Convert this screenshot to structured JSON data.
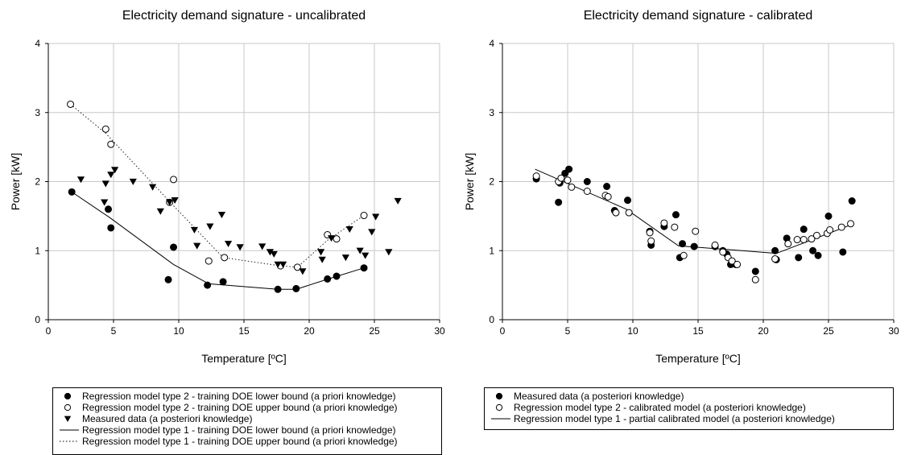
{
  "chart_data": [
    {
      "type": "scatter",
      "title": "Electricity demand signature - uncalibrated",
      "xlabel": "Temperature [ºC]",
      "ylabel": "Power [kW]",
      "xlim": [
        0,
        30
      ],
      "ylim": [
        0,
        4
      ],
      "xticks": [
        "0",
        "5",
        "10",
        "15",
        "20",
        "25",
        "30"
      ],
      "yticks": [
        "0",
        "1",
        "2",
        "3",
        "4"
      ],
      "grid": true,
      "legend_position": "bottom",
      "series": [
        {
          "name": "Regression model type 2 - training DOE lower bound (a priori knowledge)",
          "marker": "filled-circle",
          "points": [
            [
              1.8,
              1.85
            ],
            [
              4.6,
              1.6
            ],
            [
              4.8,
              1.33
            ],
            [
              9.2,
              0.58
            ],
            [
              9.6,
              1.05
            ],
            [
              12.2,
              0.5
            ],
            [
              13.4,
              0.55
            ],
            [
              17.6,
              0.44
            ],
            [
              19.0,
              0.45
            ],
            [
              21.4,
              0.59
            ],
            [
              22.1,
              0.63
            ],
            [
              24.2,
              0.75
            ]
          ]
        },
        {
          "name": "Regression model type 2 - training DOE upper bound (a priori knowledge)",
          "marker": "open-circle",
          "points": [
            [
              1.7,
              3.12
            ],
            [
              4.4,
              2.76
            ],
            [
              4.8,
              2.54
            ],
            [
              9.3,
              1.7
            ],
            [
              9.6,
              2.03
            ],
            [
              12.3,
              0.85
            ],
            [
              13.5,
              0.9
            ],
            [
              17.8,
              0.78
            ],
            [
              19.1,
              0.76
            ],
            [
              21.4,
              1.23
            ],
            [
              22.1,
              1.17
            ],
            [
              24.2,
              1.51
            ]
          ]
        },
        {
          "name": "Measured data (a posteriori knowledge)",
          "marker": "triangle-down",
          "points": [
            [
              2.5,
              2.03
            ],
            [
              4.3,
              1.7
            ],
            [
              4.4,
              1.97
            ],
            [
              4.8,
              2.1
            ],
            [
              5.1,
              2.17
            ],
            [
              6.5,
              2.0
            ],
            [
              8.0,
              1.92
            ],
            [
              8.6,
              1.57
            ],
            [
              9.3,
              1.7
            ],
            [
              9.7,
              1.73
            ],
            [
              11.2,
              1.3
            ],
            [
              11.4,
              1.07
            ],
            [
              12.4,
              1.35
            ],
            [
              13.3,
              1.52
            ],
            [
              13.8,
              1.1
            ],
            [
              14.7,
              1.05
            ],
            [
              16.4,
              1.06
            ],
            [
              17.0,
              0.98
            ],
            [
              17.3,
              0.95
            ],
            [
              17.6,
              0.8
            ],
            [
              18.0,
              0.8
            ],
            [
              19.5,
              0.7
            ],
            [
              20.9,
              0.98
            ],
            [
              21.0,
              0.87
            ],
            [
              21.7,
              1.18
            ],
            [
              22.8,
              0.9
            ],
            [
              23.1,
              1.31
            ],
            [
              23.9,
              1.0
            ],
            [
              24.3,
              0.93
            ],
            [
              24.8,
              1.27
            ],
            [
              25.1,
              1.49
            ],
            [
              26.1,
              0.98
            ],
            [
              26.8,
              1.72
            ]
          ]
        },
        {
          "name": "Regression model type 1 - training DOE lower bound (a priori knowledge)",
          "line_style": "solid",
          "points": [
            [
              1.8,
              1.85
            ],
            [
              4.7,
              1.48
            ],
            [
              9.6,
              0.8
            ],
            [
              12.3,
              0.52
            ],
            [
              17.6,
              0.44
            ],
            [
              19.0,
              0.44
            ],
            [
              21.3,
              0.58
            ],
            [
              24.2,
              0.75
            ]
          ]
        },
        {
          "name": "Regression model type 1 - training DOE upper bound (a priori knowledge)",
          "line_style": "dotted",
          "points": [
            [
              1.7,
              3.12
            ],
            [
              4.4,
              2.7
            ],
            [
              9.5,
              1.67
            ],
            [
              13.4,
              0.9
            ],
            [
              17.8,
              0.78
            ],
            [
              19.1,
              0.76
            ],
            [
              21.4,
              1.15
            ],
            [
              24.2,
              1.51
            ]
          ]
        }
      ]
    },
    {
      "type": "scatter",
      "title": "Electricity demand signature - calibrated",
      "xlabel": "Temperature [ºC]",
      "ylabel": "Power [kW]",
      "xlim": [
        0,
        30
      ],
      "ylim": [
        0,
        4
      ],
      "xticks": [
        "0",
        "5",
        "10",
        "15",
        "20",
        "25",
        "30"
      ],
      "yticks": [
        "0",
        "1",
        "2",
        "3",
        "4"
      ],
      "grid": true,
      "legend_position": "bottom",
      "series": [
        {
          "name": "Measured data (a posteriori knowledge)",
          "marker": "filled-circle",
          "points": [
            [
              2.6,
              2.04
            ],
            [
              4.3,
              1.7
            ],
            [
              4.4,
              1.98
            ],
            [
              4.8,
              2.12
            ],
            [
              5.1,
              2.18
            ],
            [
              6.5,
              2.0
            ],
            [
              8.0,
              1.93
            ],
            [
              8.6,
              1.58
            ],
            [
              9.6,
              1.73
            ],
            [
              11.3,
              1.28
            ],
            [
              11.4,
              1.08
            ],
            [
              12.4,
              1.35
            ],
            [
              13.3,
              1.52
            ],
            [
              13.6,
              0.9
            ],
            [
              13.8,
              1.1
            ],
            [
              14.7,
              1.06
            ],
            [
              16.3,
              1.06
            ],
            [
              16.9,
              1.0
            ],
            [
              17.2,
              0.95
            ],
            [
              17.5,
              0.8
            ],
            [
              17.9,
              0.8
            ],
            [
              19.4,
              0.7
            ],
            [
              20.9,
              1.0
            ],
            [
              21.0,
              0.87
            ],
            [
              21.8,
              1.18
            ],
            [
              22.7,
              0.9
            ],
            [
              23.1,
              1.31
            ],
            [
              23.8,
              1.0
            ],
            [
              24.2,
              0.93
            ],
            [
              25.0,
              1.5
            ],
            [
              26.1,
              0.98
            ],
            [
              26.8,
              1.72
            ]
          ]
        },
        {
          "name": "Regression model type 2 - calibrated model (a posteriori knowledge)",
          "marker": "open-circle",
          "points": [
            [
              2.6,
              2.08
            ],
            [
              4.3,
              2.0
            ],
            [
              4.5,
              2.05
            ],
            [
              5.0,
              2.02
            ],
            [
              5.3,
              1.92
            ],
            [
              6.5,
              1.86
            ],
            [
              7.9,
              1.8
            ],
            [
              8.1,
              1.78
            ],
            [
              8.7,
              1.55
            ],
            [
              9.7,
              1.55
            ],
            [
              11.3,
              1.26
            ],
            [
              11.4,
              1.14
            ],
            [
              12.4,
              1.4
            ],
            [
              13.2,
              1.34
            ],
            [
              13.9,
              0.93
            ],
            [
              14.8,
              1.28
            ],
            [
              16.3,
              1.08
            ],
            [
              16.9,
              0.98
            ],
            [
              17.3,
              0.9
            ],
            [
              17.6,
              0.85
            ],
            [
              18.0,
              0.8
            ],
            [
              19.4,
              0.58
            ],
            [
              20.9,
              0.88
            ],
            [
              21.9,
              1.1
            ],
            [
              22.6,
              1.16
            ],
            [
              23.1,
              1.16
            ],
            [
              23.7,
              1.17
            ],
            [
              24.1,
              1.22
            ],
            [
              24.9,
              1.25
            ],
            [
              25.1,
              1.3
            ],
            [
              26.0,
              1.34
            ],
            [
              26.7,
              1.39
            ]
          ]
        },
        {
          "name": "Regression model type 1 - partial calibrated model (a posteriori knowledge)",
          "line_style": "solid",
          "points": [
            [
              2.5,
              2.18
            ],
            [
              9.5,
              1.6
            ],
            [
              13.5,
              1.07
            ],
            [
              17.0,
              1.02
            ],
            [
              21.0,
              0.96
            ],
            [
              26.8,
              1.38
            ]
          ]
        }
      ]
    }
  ]
}
